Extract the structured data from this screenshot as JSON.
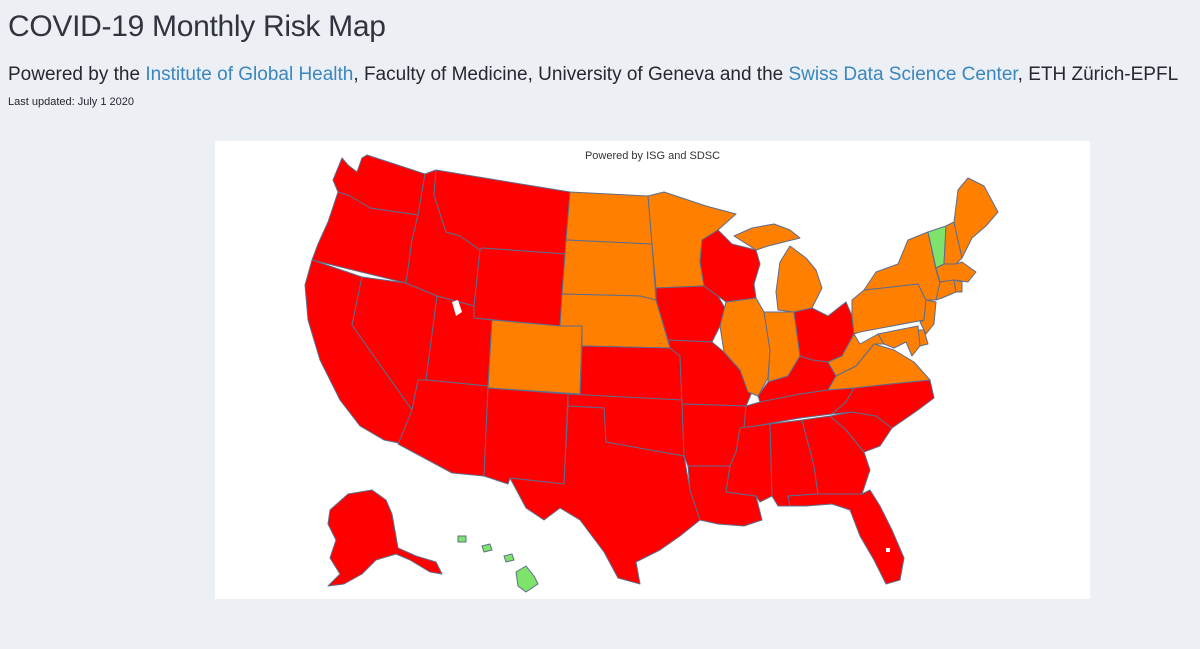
{
  "header": {
    "title": "COVID-19 Monthly Risk Map",
    "subtitle_prefix": "Powered by the ",
    "link1": "Institute of Global Health",
    "subtitle_middle": ", Faculty of Medicine, University of Geneva and the ",
    "link2": "Swiss Data Science Center",
    "subtitle_suffix": ", ETH Zürich-EPFL",
    "last_updated": "Last updated: July 1 2020"
  },
  "map": {
    "caption": "Powered by ISG and SDSC",
    "colors": {
      "high": "#ff0000",
      "medium": "#ff7f00",
      "low": "#7ee36a",
      "border": "#5d6d8c"
    },
    "risk": {
      "WA": "high",
      "OR": "high",
      "CA": "high",
      "ID": "high",
      "NV": "high",
      "AZ": "high",
      "UT": "high",
      "MT": "high",
      "WY": "high",
      "NM": "high",
      "CO": "medium",
      "ND": "medium",
      "SD": "medium",
      "NE": "medium",
      "KS": "high",
      "OK": "high",
      "TX": "high",
      "MN": "medium",
      "IA": "high",
      "MO": "high",
      "AR": "high",
      "LA": "high",
      "WI": "high",
      "IL": "medium",
      "MI": "medium",
      "IN": "medium",
      "OH": "high",
      "KY": "high",
      "TN": "high",
      "MS": "high",
      "AL": "high",
      "GA": "high",
      "FL": "high",
      "SC": "high",
      "NC": "high",
      "VA": "medium",
      "WV": "medium",
      "PA": "medium",
      "NY": "medium",
      "VT": "low",
      "NH": "medium",
      "ME": "medium",
      "MA": "medium",
      "CT": "medium",
      "RI": "medium",
      "NJ": "medium",
      "DE": "medium",
      "MD": "medium",
      "AK": "high",
      "HI": "low"
    }
  }
}
